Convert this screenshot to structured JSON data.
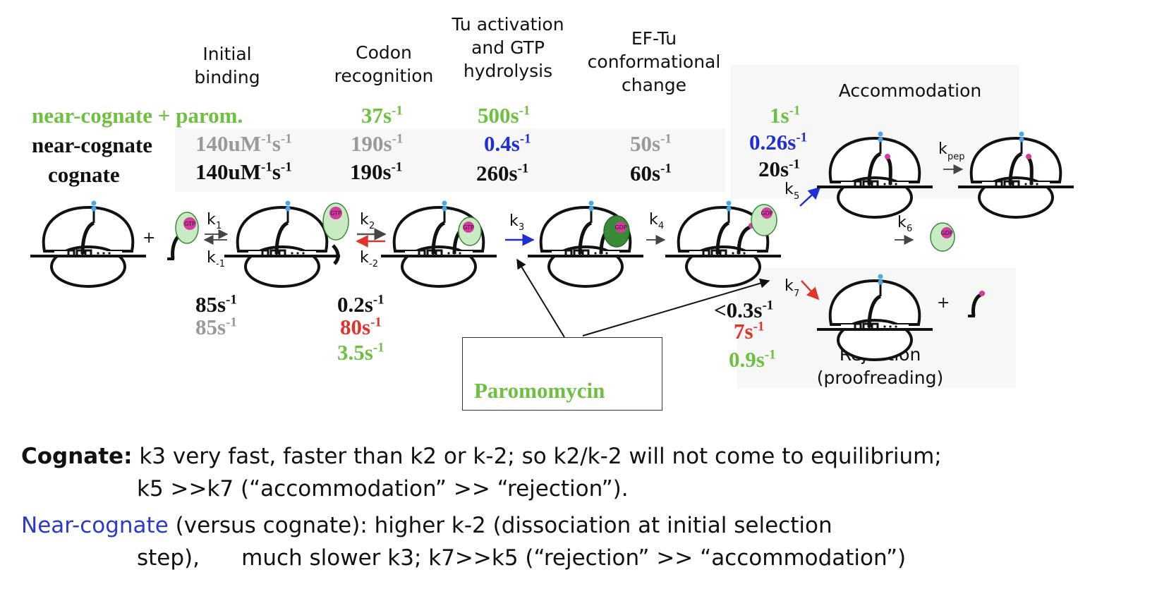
{
  "stages": {
    "initial_binding": [
      "Initial",
      "binding"
    ],
    "codon_recognition": [
      "Codon",
      "recognition"
    ],
    "tu_activation": [
      "Tu activation",
      "and GTP",
      "hydrolysis"
    ],
    "efTu_change": [
      "EF-Tu",
      "conformational",
      "change"
    ],
    "accommodation": "Accommodation",
    "rejection": [
      "Rejection",
      "(proofreading)"
    ]
  },
  "row_labels": {
    "near_cognate_parom": "near-cognate + parom.",
    "near_cognate": "near-cognate",
    "cognate": "cognate"
  },
  "rates": {
    "k1_near": {
      "base": "140uM",
      "sup1": "-1",
      "mid": "s",
      "sup2": "-1"
    },
    "k1_cog": {
      "base": "140uM",
      "sup1": "-1",
      "mid": "s",
      "sup2": "-1"
    },
    "k2_parom": {
      "base": "37s",
      "sup": "-1"
    },
    "k2_near": {
      "base": "190s",
      "sup": "-1"
    },
    "k2_cog": {
      "base": "190s",
      "sup": "-1"
    },
    "k3_parom": {
      "base": "500s",
      "sup": "-1"
    },
    "k3_near": {
      "base": "0.4s",
      "sup": "-1"
    },
    "k3_cog": {
      "base": "260s",
      "sup": "-1"
    },
    "k4_near": {
      "base": "50s",
      "sup": "-1"
    },
    "k4_cog": {
      "base": "60s",
      "sup": "-1"
    },
    "k5_parom": {
      "base": "1s",
      "sup": "-1"
    },
    "k5_near": {
      "base": "0.26s",
      "sup": "-1"
    },
    "k5_cog": {
      "base": "20s",
      "sup": "-1"
    },
    "km1_cog": {
      "base": "85s",
      "sup": "-1"
    },
    "km1_near": {
      "base": "85s",
      "sup": "-1"
    },
    "km2_cog": {
      "base": "0.2s",
      "sup": "-1"
    },
    "km2_near": {
      "base": "80s",
      "sup": "-1"
    },
    "km2_parom": {
      "base": "3.5s",
      "sup": "-1"
    },
    "k7_cog": {
      "base": "<0.3s",
      "sup": "-1"
    },
    "k7_near": {
      "base": "7s",
      "sup": "-1"
    },
    "k7_parom": {
      "base": "0.9s",
      "sup": "-1"
    }
  },
  "constants": {
    "k": "k",
    "k1": "1",
    "km1": "-1",
    "k2": "2",
    "km2": "-2",
    "k3": "3",
    "k4": "4",
    "k5": "5",
    "k6": "6",
    "k7": "7",
    "kpep": "pep"
  },
  "glyphs": {
    "plus": "+",
    "gtp": "GTP",
    "gdp": "GDP"
  },
  "paromomycin_label": "Paromomycin",
  "notes": {
    "cognate_title": "Cognate:",
    "cognate_line1": "k3 very fast, faster than k2 or k-2; so k2/k-2 will not come to equilibrium;",
    "cognate_line2": "k5 >>k7 (“accommodation” >> “rejection”).",
    "near_title": "Near-cognate",
    "near_line1": "(versus cognate): higher k-2 (dissociation at initial selection",
    "near_line2": "step),      much slower k3; k7>>k5 (“rejection” >> “accommodation”)"
  },
  "colors": {
    "green": "#6ec041",
    "gray": "#9a9a9a",
    "blue": "#1f2ed6",
    "red": "#e0332a",
    "eftu_fill": "#c8ebc4",
    "eftu_dark": "#3a8a3a",
    "gtp_magenta": "#d63aa0",
    "trna_blue": "#4aa8e8"
  }
}
